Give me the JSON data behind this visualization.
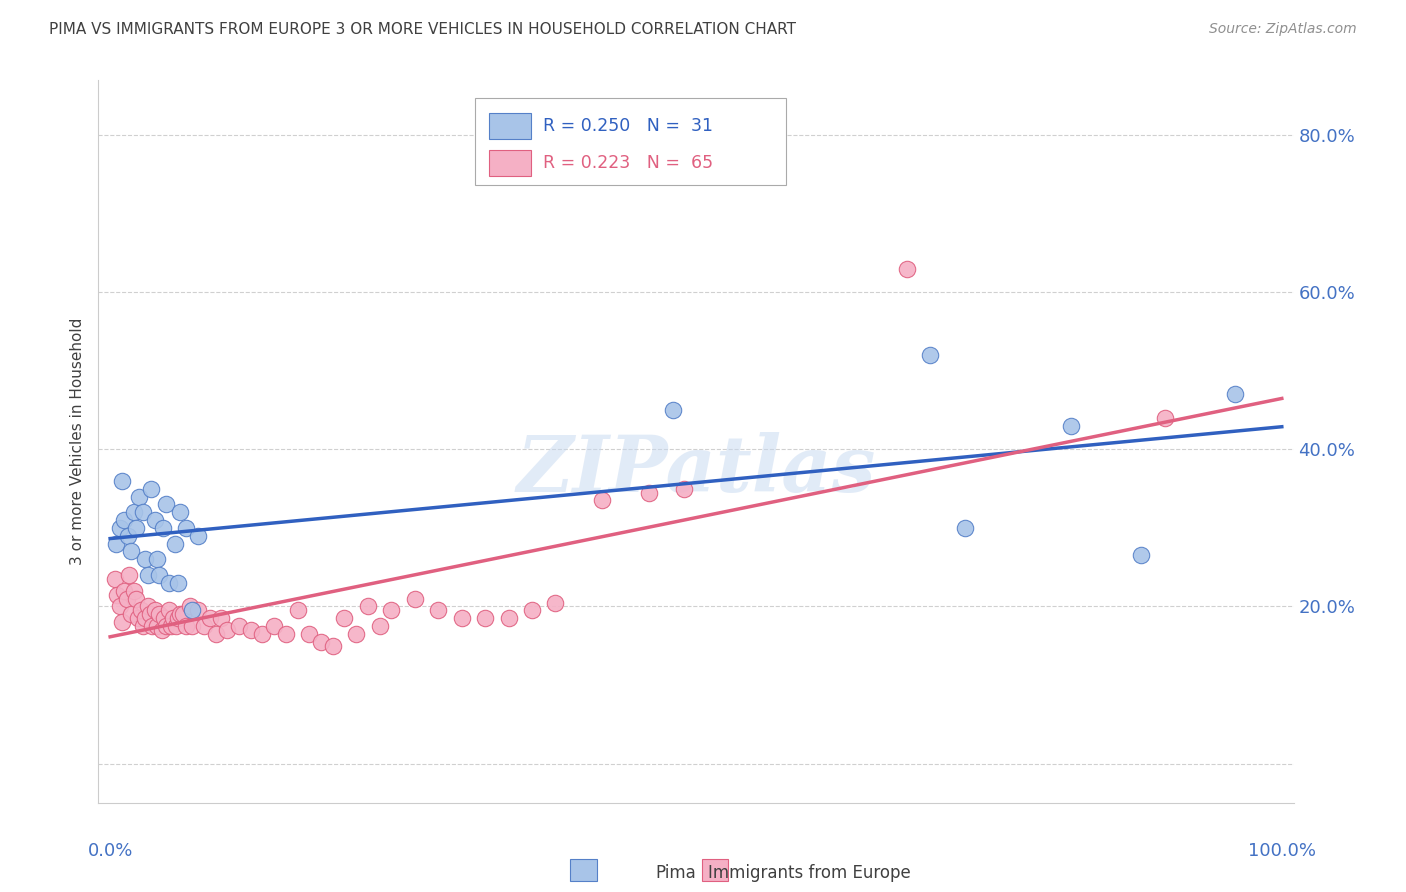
{
  "title": "PIMA VS IMMIGRANTS FROM EUROPE 3 OR MORE VEHICLES IN HOUSEHOLD CORRELATION CHART",
  "source_text": "Source: ZipAtlas.com",
  "ylabel": "3 or more Vehicles in Household",
  "x_tick_labels_show": [
    "0.0%",
    "100.0%"
  ],
  "x_tick_positions_show": [
    0.0,
    1.0
  ],
  "y_ticks": [
    0.0,
    0.2,
    0.4,
    0.6,
    0.8
  ],
  "y_tick_labels": [
    "",
    "20.0%",
    "40.0%",
    "60.0%",
    "80.0%"
  ],
  "xlim": [
    -0.01,
    1.01
  ],
  "ylim": [
    -0.05,
    0.87
  ],
  "pima_color": "#a8c4e8",
  "europe_color": "#f5b0c5",
  "pima_edge_color": "#5580c8",
  "europe_edge_color": "#e06080",
  "pima_line_color": "#3060c0",
  "europe_line_color": "#e06080",
  "legend_R_pima": "R = 0.250",
  "legend_N_pima": "N =  31",
  "legend_R_europe": "R = 0.223",
  "legend_N_europe": "N =  65",
  "legend_label_pima": "Pima",
  "legend_label_europe": "Immigrants from Europe",
  "watermark_text": "ZIPatlas",
  "background_color": "#ffffff",
  "grid_color": "#d0d0d0",
  "tick_label_color": "#4472c4",
  "title_color": "#404040",
  "source_color": "#909090",
  "pima_x": [
    0.005,
    0.008,
    0.01,
    0.012,
    0.015,
    0.018,
    0.02,
    0.022,
    0.025,
    0.028,
    0.03,
    0.032,
    0.035,
    0.038,
    0.04,
    0.042,
    0.045,
    0.048,
    0.05,
    0.055,
    0.058,
    0.06,
    0.065,
    0.07,
    0.075,
    0.48,
    0.7,
    0.73,
    0.82,
    0.88,
    0.96
  ],
  "pima_y": [
    0.28,
    0.3,
    0.36,
    0.31,
    0.29,
    0.27,
    0.32,
    0.3,
    0.34,
    0.32,
    0.26,
    0.24,
    0.35,
    0.31,
    0.26,
    0.24,
    0.3,
    0.33,
    0.23,
    0.28,
    0.23,
    0.32,
    0.3,
    0.195,
    0.29,
    0.45,
    0.52,
    0.3,
    0.43,
    0.265,
    0.47
  ],
  "europe_x": [
    0.004,
    0.006,
    0.008,
    0.01,
    0.012,
    0.014,
    0.016,
    0.018,
    0.02,
    0.022,
    0.024,
    0.026,
    0.028,
    0.03,
    0.032,
    0.034,
    0.036,
    0.038,
    0.04,
    0.042,
    0.044,
    0.046,
    0.048,
    0.05,
    0.052,
    0.054,
    0.056,
    0.058,
    0.06,
    0.062,
    0.065,
    0.068,
    0.07,
    0.075,
    0.08,
    0.085,
    0.09,
    0.095,
    0.1,
    0.11,
    0.12,
    0.13,
    0.14,
    0.15,
    0.16,
    0.17,
    0.18,
    0.19,
    0.2,
    0.21,
    0.22,
    0.23,
    0.24,
    0.26,
    0.28,
    0.3,
    0.32,
    0.34,
    0.36,
    0.38,
    0.42,
    0.46,
    0.49,
    0.68,
    0.9
  ],
  "europe_y": [
    0.235,
    0.215,
    0.2,
    0.18,
    0.22,
    0.21,
    0.24,
    0.19,
    0.22,
    0.21,
    0.185,
    0.195,
    0.175,
    0.185,
    0.2,
    0.19,
    0.175,
    0.195,
    0.175,
    0.19,
    0.17,
    0.185,
    0.175,
    0.195,
    0.175,
    0.185,
    0.175,
    0.185,
    0.19,
    0.19,
    0.175,
    0.2,
    0.175,
    0.195,
    0.175,
    0.185,
    0.165,
    0.185,
    0.17,
    0.175,
    0.17,
    0.165,
    0.175,
    0.165,
    0.195,
    0.165,
    0.155,
    0.15,
    0.185,
    0.165,
    0.2,
    0.175,
    0.195,
    0.21,
    0.195,
    0.185,
    0.185,
    0.185,
    0.195,
    0.205,
    0.335,
    0.345,
    0.35,
    0.63,
    0.44
  ]
}
